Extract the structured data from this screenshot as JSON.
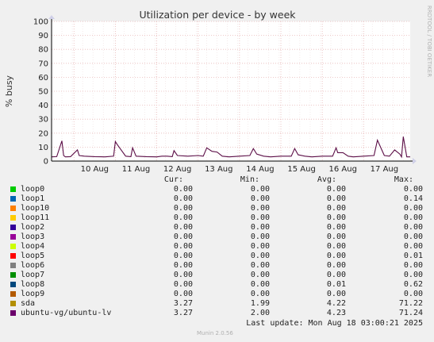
{
  "chart_data": {
    "type": "line",
    "title": "Utilization per device - by week",
    "ylabel": "% busy",
    "ylim": [
      0,
      100
    ],
    "yticks": [
      0,
      10,
      20,
      30,
      40,
      50,
      60,
      70,
      80,
      90,
      100
    ],
    "xticks": [
      "10 Aug",
      "11 Aug",
      "12 Aug",
      "13 Aug",
      "14 Aug",
      "15 Aug",
      "16 Aug",
      "17 Aug"
    ],
    "x_range_days": [
      "2025-08-09 11:00",
      "2025-08-18 03:00"
    ],
    "grid": true,
    "series": [
      {
        "name": "ubuntu-vg/ubuntu-lv",
        "color": "#5b0d46",
        "x": [
          "2025-08-09 11:00",
          "2025-08-09 14:00",
          "2025-08-09 17:00",
          "2025-08-09 18:00",
          "2025-08-09 19:00",
          "2025-08-09 22:00",
          "2025-08-10 02:00",
          "2025-08-10 03:00",
          "2025-08-10 06:00",
          "2025-08-10 12:00",
          "2025-08-10 18:00",
          "2025-08-10 23:00",
          "2025-08-11 00:00",
          "2025-08-11 01:00",
          "2025-08-11 06:00",
          "2025-08-11 09:00",
          "2025-08-11 10:00",
          "2025-08-11 12:00",
          "2025-08-11 18:00",
          "2025-08-12 00:00",
          "2025-08-12 03:00",
          "2025-08-12 06:00",
          "2025-08-12 09:00",
          "2025-08-12 10:00",
          "2025-08-12 12:00",
          "2025-08-12 18:00",
          "2025-08-13 00:00",
          "2025-08-13 03:00",
          "2025-08-13 05:00",
          "2025-08-13 08:00",
          "2025-08-13 11:00",
          "2025-08-13 14:00",
          "2025-08-13 18:00",
          "2025-08-14 00:00",
          "2025-08-14 06:00",
          "2025-08-14 08:00",
          "2025-08-14 10:00",
          "2025-08-14 14:00",
          "2025-08-14 18:00",
          "2025-08-15 00:00",
          "2025-08-15 06:00",
          "2025-08-15 08:00",
          "2025-08-15 10:00",
          "2025-08-15 14:00",
          "2025-08-15 18:00",
          "2025-08-16 00:00",
          "2025-08-16 06:00",
          "2025-08-16 08:00",
          "2025-08-16 09:00",
          "2025-08-16 12:00",
          "2025-08-16 15:00",
          "2025-08-16 18:00",
          "2025-08-17 00:00",
          "2025-08-17 06:00",
          "2025-08-17 08:00",
          "2025-08-17 12:00",
          "2025-08-17 15:00",
          "2025-08-17 18:00",
          "2025-08-17 21:00",
          "2025-08-17 22:00",
          "2025-08-17 23:00",
          "2025-08-18 01:00",
          "2025-08-18 03:00"
        ],
        "values": [
          3.0,
          3.2,
          14.5,
          4.0,
          3.0,
          3.2,
          8.0,
          4.0,
          3.5,
          3.2,
          3.0,
          3.5,
          14.0,
          12.0,
          3.5,
          3.2,
          9.5,
          3.5,
          3.2,
          3.0,
          3.5,
          3.5,
          3.2,
          7.5,
          4.0,
          3.5,
          4.0,
          3.5,
          9.5,
          7.0,
          6.5,
          3.5,
          3.0,
          3.5,
          4.0,
          9.0,
          5.0,
          3.5,
          3.0,
          3.5,
          3.5,
          9.0,
          4.5,
          3.5,
          3.0,
          3.5,
          3.5,
          9.5,
          6.0,
          6.0,
          3.5,
          3.0,
          3.5,
          4.0,
          15.0,
          4.0,
          3.5,
          8.0,
          5.0,
          3.0,
          17.5,
          3.0,
          3.0
        ]
      }
    ]
  },
  "side_label": "RRDTOOL / TOBI OETIKER",
  "legend": {
    "headers": {
      "cur": "Cur:",
      "min": "Min:",
      "avg": "Avg:",
      "max": "Max:"
    },
    "rows": [
      {
        "name": "loop0",
        "color": "#00cc00",
        "cur": "0.00",
        "min": "0.00",
        "avg": "0.00",
        "max": "0.00"
      },
      {
        "name": "loop1",
        "color": "#0066b3",
        "cur": "0.00",
        "min": "0.00",
        "avg": "0.00",
        "max": "0.14"
      },
      {
        "name": "loop10",
        "color": "#ff8000",
        "cur": "0.00",
        "min": "0.00",
        "avg": "0.00",
        "max": "0.00"
      },
      {
        "name": "loop11",
        "color": "#ffcc00",
        "cur": "0.00",
        "min": "0.00",
        "avg": "0.00",
        "max": "0.00"
      },
      {
        "name": "loop2",
        "color": "#330099",
        "cur": "0.00",
        "min": "0.00",
        "avg": "0.00",
        "max": "0.00"
      },
      {
        "name": "loop3",
        "color": "#990099",
        "cur": "0.00",
        "min": "0.00",
        "avg": "0.00",
        "max": "0.00"
      },
      {
        "name": "loop4",
        "color": "#ccff00",
        "cur": "0.00",
        "min": "0.00",
        "avg": "0.00",
        "max": "0.00"
      },
      {
        "name": "loop5",
        "color": "#ff0000",
        "cur": "0.00",
        "min": "0.00",
        "avg": "0.00",
        "max": "0.01"
      },
      {
        "name": "loop6",
        "color": "#808080",
        "cur": "0.00",
        "min": "0.00",
        "avg": "0.00",
        "max": "0.00"
      },
      {
        "name": "loop7",
        "color": "#008f00",
        "cur": "0.00",
        "min": "0.00",
        "avg": "0.00",
        "max": "0.00"
      },
      {
        "name": "loop8",
        "color": "#00487d",
        "cur": "0.00",
        "min": "0.00",
        "avg": "0.01",
        "max": "0.62"
      },
      {
        "name": "loop9",
        "color": "#b35a00",
        "cur": "0.00",
        "min": "0.00",
        "avg": "0.00",
        "max": "0.00"
      },
      {
        "name": "sda",
        "color": "#b38f00",
        "cur": "3.27",
        "min": "1.99",
        "avg": "4.22",
        "max": "71.22"
      },
      {
        "name": "ubuntu-vg/ubuntu-lv",
        "color": "#6b006b",
        "cur": "3.27",
        "min": "2.00",
        "avg": "4.23",
        "max": "71.24"
      }
    ]
  },
  "footer": {
    "last_update": "Last update: Mon Aug 18 03:00:21 2025"
  },
  "version": "Munin 2.0.56"
}
